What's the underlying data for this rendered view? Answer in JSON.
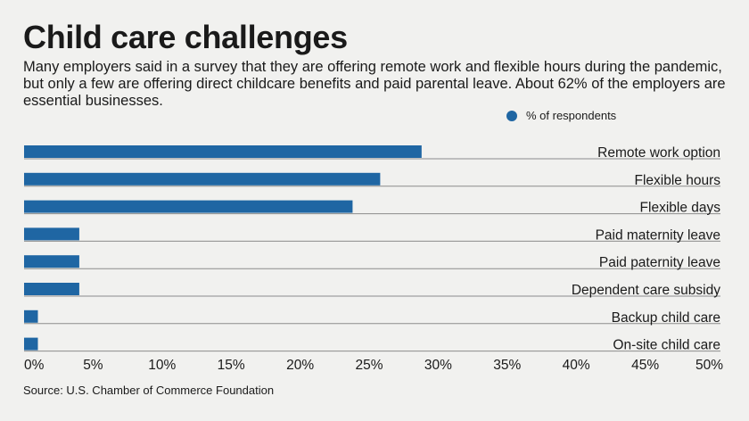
{
  "header": {
    "title": "Child care challenges",
    "subtitle": "Many employers said in a survey that they are offering remote work and flexible hours during the pandemic, but only a few are offering direct childcare benefits and paid parental leave. About 62% of the employers are essential businesses."
  },
  "footer": {
    "source": "Source: U.S. Chamber of Commerce Foundation"
  },
  "colors": {
    "bar": "#1f66a3",
    "baseline": "#8c8c8c"
  },
  "chart_data": {
    "type": "bar",
    "orientation": "horizontal",
    "categories": [
      "Remote work option",
      "Flexible hours",
      "Flexible days",
      "Paid maternity leave",
      "Paid paternity leave",
      "Dependent care subsidy",
      "Backup child care",
      "On-site child care"
    ],
    "series": [
      {
        "name": "% of respondents",
        "values": [
          28.8,
          25.8,
          23.8,
          4.0,
          4.0,
          4.0,
          1.0,
          1.0
        ]
      }
    ],
    "xlim": [
      0,
      50
    ],
    "xticks": [
      "0%",
      "5%",
      "10%",
      "15%",
      "20%",
      "25%",
      "30%",
      "35%",
      "40%",
      "45%",
      "50%"
    ],
    "legend_position": "top-right",
    "grid": false
  }
}
